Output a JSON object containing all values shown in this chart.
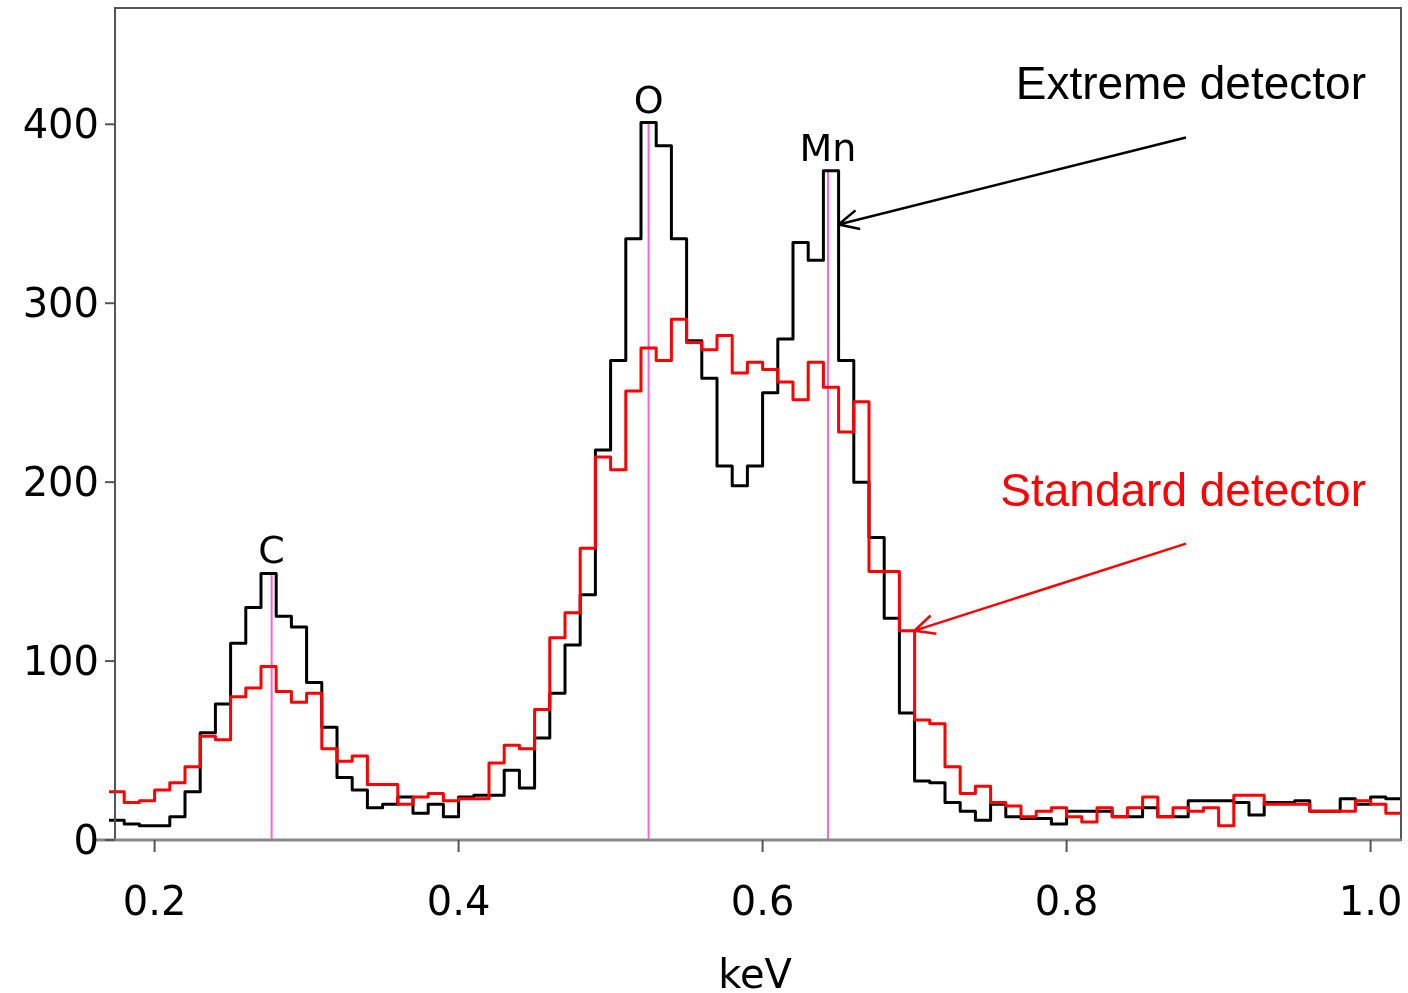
{
  "chart_data": {
    "type": "histogram",
    "xlabel": "keV",
    "bins": [
      0.17,
      0.18,
      0.19,
      0.2,
      0.21,
      0.22,
      0.23,
      0.24,
      0.25,
      0.26,
      0.27,
      0.28,
      0.29,
      0.3,
      0.31,
      0.32,
      0.33,
      0.34,
      0.35,
      0.36,
      0.37,
      0.38,
      0.39,
      0.4,
      0.41,
      0.42,
      0.43,
      0.44,
      0.45,
      0.46,
      0.47,
      0.48,
      0.49,
      0.5,
      0.51,
      0.52,
      0.53,
      0.54,
      0.55,
      0.56,
      0.57,
      0.58,
      0.59,
      0.6,
      0.61,
      0.62,
      0.63,
      0.64,
      0.65,
      0.66,
      0.67,
      0.68,
      0.69,
      0.7,
      0.71,
      0.72,
      0.73,
      0.74,
      0.75,
      0.76,
      0.77,
      0.78,
      0.79,
      0.8,
      0.81,
      0.82,
      0.83,
      0.84,
      0.85,
      0.86,
      0.87,
      0.88,
      0.89,
      0.9,
      0.91,
      0.92,
      0.93,
      0.94,
      0.95,
      0.96,
      0.97,
      0.98,
      0.99,
      1.0,
      1.01,
      1.02
    ],
    "series": [
      {
        "color": "#000000",
        "values": [
          11,
          9,
          8,
          8,
          13,
          27,
          60,
          76,
          110,
          130,
          149,
          125,
          119,
          88,
          63,
          35,
          28,
          18,
          20,
          24,
          15,
          20,
          13,
          24,
          25,
          25,
          39,
          29,
          57,
          82,
          109,
          137,
          218,
          268,
          336,
          401,
          388,
          336,
          279,
          258,
          209,
          198,
          209,
          250,
          280,
          334,
          324,
          374,
          268,
          200,
          169,
          124,
          71,
          33,
          32,
          21,
          16,
          11,
          20,
          13,
          12,
          12,
          9,
          16,
          16,
          16,
          13,
          13,
          18,
          13,
          13,
          22,
          22,
          22,
          21,
          14,
          21,
          21,
          22,
          16,
          16,
          23,
          20,
          24,
          23
        ]
      },
      {
        "color": "#ff0000",
        "values": [
          27,
          21,
          22,
          28,
          32,
          41,
          58,
          56,
          80,
          85,
          97,
          83,
          77,
          82,
          51,
          44,
          47,
          31,
          31,
          20,
          24,
          26,
          22,
          23,
          23,
          43,
          53,
          51,
          73,
          113,
          127,
          163,
          214,
          207,
          251,
          275,
          268,
          291,
          278,
          274,
          282,
          261,
          267,
          263,
          256,
          246,
          267,
          253,
          228,
          245,
          150,
          150,
          117,
          67,
          65,
          41,
          26,
          30,
          21,
          19,
          13,
          16,
          18,
          13,
          10,
          18,
          13,
          18,
          24,
          13,
          18,
          16,
          18,
          8,
          25,
          25,
          20,
          20,
          20,
          16,
          16,
          16,
          22,
          20,
          15
        ]
      }
    ],
    "xlim": [
      0.17,
      1.02
    ],
    "xticks": [
      0.2,
      0.4,
      0.6,
      0.8,
      {
        "value": 1.0,
        "label": "1.0"
      }
    ],
    "ylim": [
      0,
      465
    ],
    "yticks": [
      0,
      100,
      200,
      300,
      400
    ],
    "grid": false,
    "ref_lines": [
      {
        "axis": "x",
        "value": 0.277,
        "label": "C",
        "color": "#ff66cc"
      },
      {
        "axis": "x",
        "value": 0.525,
        "label": "O",
        "color": "#ff66cc"
      },
      {
        "axis": "x",
        "value": 0.643,
        "label": "Mn",
        "color": "#ff66cc"
      }
    ],
    "annotations": [
      {
        "text": "Extreme detector",
        "x": 0.65,
        "y": 344
      },
      {
        "text": "Standard detector",
        "x": 0.7,
        "y": 117
      }
    ]
  }
}
